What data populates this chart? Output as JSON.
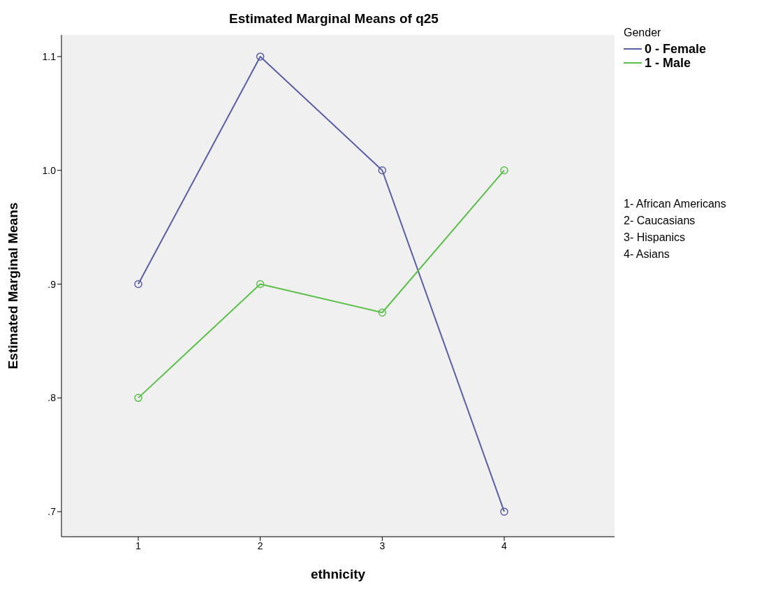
{
  "chart_data": {
    "type": "line",
    "title": "Estimated Marginal Means of q25",
    "xlabel": "ethnicity",
    "ylabel": "Estimated Marginal Means",
    "legend_title": "Gender",
    "categories": [
      "1",
      "2",
      "3",
      "4"
    ],
    "series": [
      {
        "name": "0 - Female",
        "color": "#5a5ea6",
        "values": [
          0.9,
          1.1,
          1.0,
          0.7
        ]
      },
      {
        "name": "1 - Male",
        "color": "#5cbf4c",
        "values": [
          0.8,
          0.9,
          0.875,
          1.0
        ]
      }
    ],
    "ylim": [
      0.678,
      1.119
    ],
    "yticks": [
      {
        "value": 0.7,
        "label": ".7"
      },
      {
        "value": 0.8,
        "label": ".8"
      },
      {
        "value": 0.9,
        "label": ".9"
      },
      {
        "value": 1.0,
        "label": "1.0"
      },
      {
        "value": 1.1,
        "label": "1.1"
      }
    ],
    "annotations": [
      "1- African Americans",
      "2- Caucasians",
      "3- Hispanics",
      "4- Asians"
    ],
    "marker": "circle",
    "line_style": "solid",
    "legend": "right",
    "grid": false
  }
}
